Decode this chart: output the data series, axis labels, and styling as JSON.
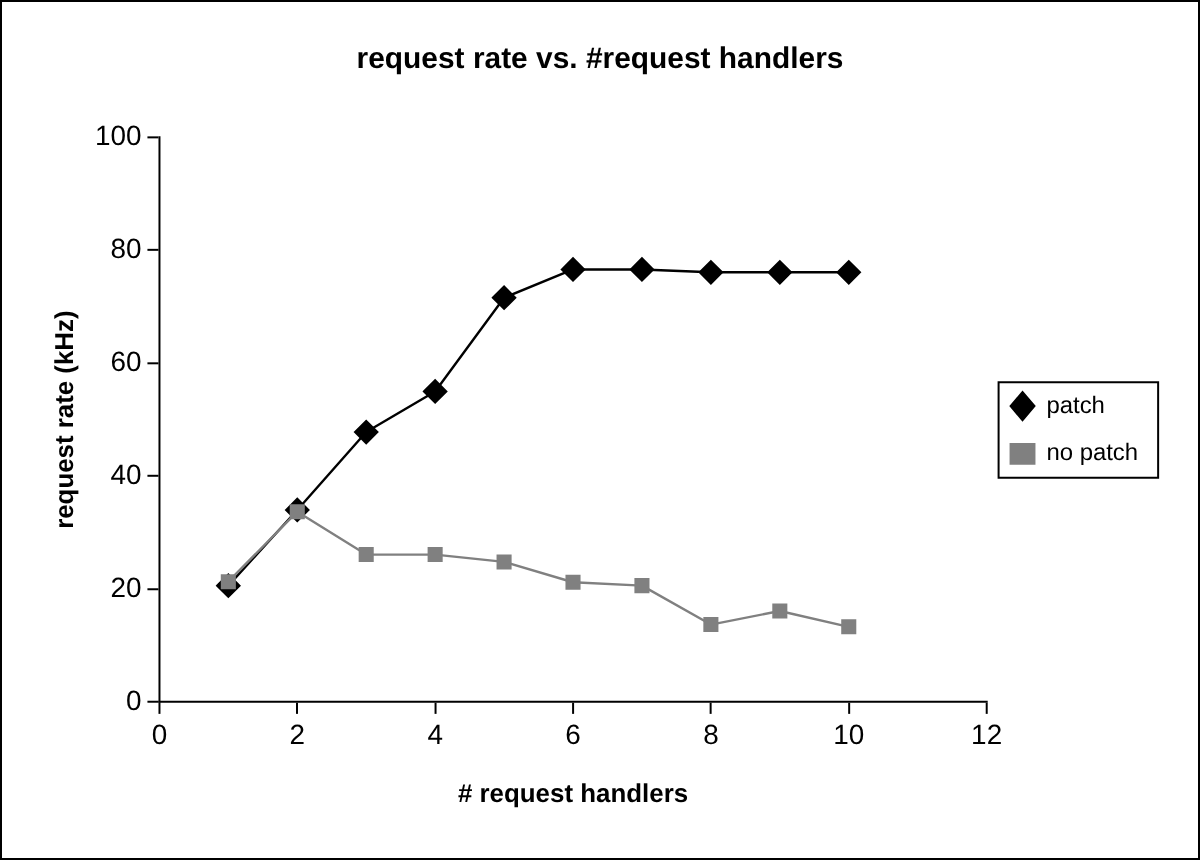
{
  "chart_data": {
    "type": "line",
    "title": "request rate vs. #request handlers",
    "xlabel": "# request handlers",
    "ylabel": "request rate (kHz)",
    "x": [
      1,
      2,
      3,
      4,
      5,
      6,
      7,
      8,
      9,
      10
    ],
    "series": [
      {
        "name": "patch",
        "color": "#000000",
        "marker": "diamond",
        "values": [
          20.6,
          34,
          47.8,
          55,
          71.6,
          76.6,
          76.6,
          76.1,
          76.1,
          76.1
        ]
      },
      {
        "name": "no patch",
        "color": "#808080",
        "marker": "square",
        "values": [
          21.3,
          33.7,
          26.1,
          26.1,
          24.8,
          21.2,
          20.6,
          13.7,
          16.1,
          13.3
        ]
      }
    ],
    "xlim": [
      0,
      12
    ],
    "xticks": [
      0,
      2,
      4,
      6,
      8,
      10,
      12
    ],
    "ylim": [
      0,
      100
    ],
    "yticks": [
      0,
      20,
      40,
      60,
      80,
      100
    ],
    "grid": false,
    "legend": "right",
    "line_style": "solid"
  }
}
